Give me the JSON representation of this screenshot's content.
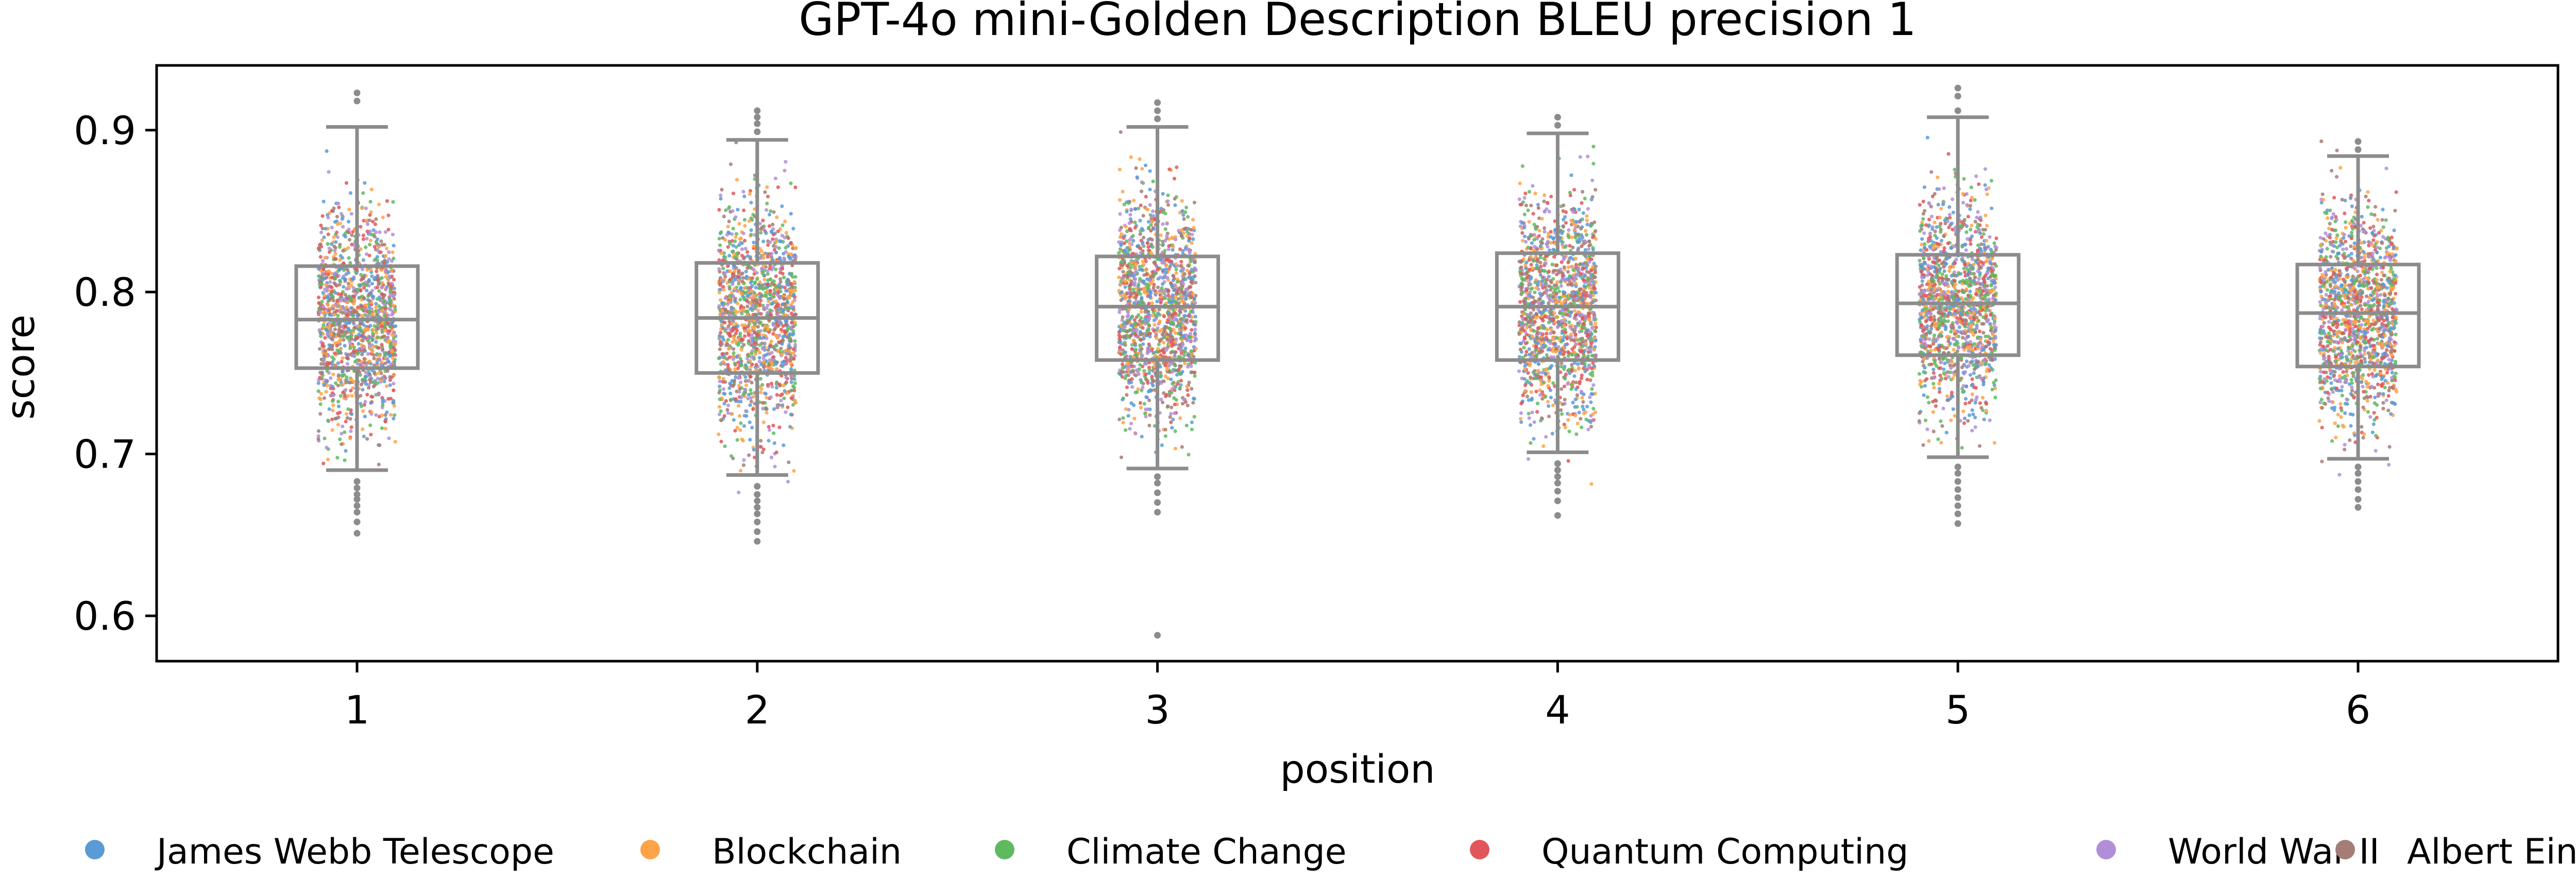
{
  "chart_data": {
    "type": "box+strip",
    "title": "GPT-4o mini-Golden Description BLEU precision 1",
    "xlabel": "position",
    "ylabel": "score",
    "categories": [
      "1",
      "2",
      "3",
      "4",
      "5",
      "6"
    ],
    "ylim": [
      0.572,
      0.94
    ],
    "yticks": [
      0.6,
      0.7,
      0.8,
      0.9
    ],
    "ytick_labels": [
      "0.6",
      "0.7",
      "0.8",
      "0.9"
    ],
    "grid": false,
    "legend_position": "bottom",
    "series": [
      {
        "name": "James Webb Telescope",
        "color": "#5b9bd5"
      },
      {
        "name": "Blockchain",
        "color": "#ffa348"
      },
      {
        "name": "Climate Change",
        "color": "#5fba5f"
      },
      {
        "name": "Quantum Computing",
        "color": "#e15759"
      },
      {
        "name": "World War II",
        "color": "#b08fd8"
      },
      {
        "name": "Albert Einstein",
        "color": "#a67c76"
      }
    ],
    "boxes": [
      {
        "position": "1",
        "q1": 0.753,
        "median": 0.783,
        "q3": 0.816,
        "whisker_low": 0.69,
        "whisker_high": 0.902,
        "outliers": [
          0.651,
          0.658,
          0.664,
          0.668,
          0.672,
          0.675,
          0.679,
          0.683,
          0.918,
          0.923
        ]
      },
      {
        "position": "2",
        "q1": 0.75,
        "median": 0.784,
        "q3": 0.818,
        "whisker_low": 0.687,
        "whisker_high": 0.894,
        "outliers": [
          0.646,
          0.652,
          0.658,
          0.663,
          0.667,
          0.671,
          0.675,
          0.68,
          0.899,
          0.904,
          0.908,
          0.912
        ]
      },
      {
        "position": "3",
        "q1": 0.758,
        "median": 0.791,
        "q3": 0.822,
        "whisker_low": 0.691,
        "whisker_high": 0.902,
        "outliers": [
          0.588,
          0.664,
          0.67,
          0.676,
          0.682,
          0.686,
          0.907,
          0.912,
          0.917
        ]
      },
      {
        "position": "4",
        "q1": 0.758,
        "median": 0.791,
        "q3": 0.824,
        "whisker_low": 0.701,
        "whisker_high": 0.898,
        "outliers": [
          0.662,
          0.671,
          0.677,
          0.682,
          0.686,
          0.69,
          0.694,
          0.903,
          0.908
        ]
      },
      {
        "position": "5",
        "q1": 0.761,
        "median": 0.793,
        "q3": 0.823,
        "whisker_low": 0.698,
        "whisker_high": 0.908,
        "outliers": [
          0.657,
          0.663,
          0.668,
          0.673,
          0.678,
          0.683,
          0.688,
          0.692,
          0.912,
          0.921,
          0.926
        ]
      },
      {
        "position": "6",
        "q1": 0.754,
        "median": 0.787,
        "q3": 0.817,
        "whisker_low": 0.697,
        "whisker_high": 0.884,
        "outliers": [
          0.667,
          0.672,
          0.678,
          0.683,
          0.688,
          0.692,
          0.888,
          0.893
        ]
      }
    ]
  }
}
